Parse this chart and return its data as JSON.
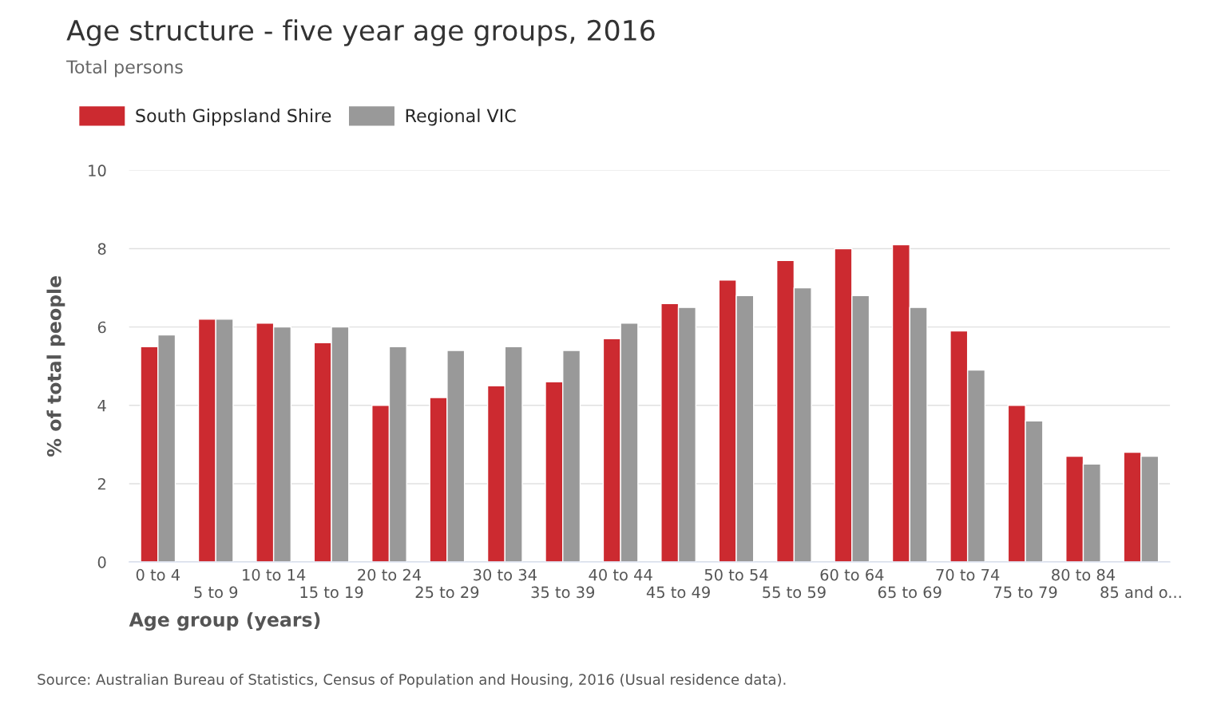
{
  "chart_data": {
    "type": "bar",
    "title": "Age structure - five year age groups, 2016",
    "subtitle": "Total persons",
    "xlabel": "Age group (years)",
    "ylabel": "% of total people",
    "categories": [
      "0 to 4",
      "5 to 9",
      "10 to 14",
      "15 to 19",
      "20 to 24",
      "25 to 29",
      "30 to 34",
      "35 to 39",
      "40 to 44",
      "45 to 49",
      "50 to 54",
      "55 to 59",
      "60 to 64",
      "65 to 69",
      "70 to 74",
      "75 to 79",
      "80 to 84",
      "85 and o..."
    ],
    "series": [
      {
        "name": "South Gippsland Shire",
        "color": "#cc2a30",
        "values": [
          5.5,
          6.2,
          6.1,
          5.6,
          4.0,
          4.2,
          4.5,
          4.6,
          5.7,
          6.6,
          7.2,
          7.7,
          8.0,
          8.1,
          5.9,
          4.0,
          2.7,
          2.8
        ]
      },
      {
        "name": "Regional VIC",
        "color": "#999999",
        "values": [
          5.8,
          6.2,
          6.0,
          6.0,
          5.5,
          5.4,
          5.5,
          5.4,
          6.1,
          6.5,
          6.8,
          7.0,
          6.8,
          6.5,
          4.9,
          3.6,
          2.5,
          2.7
        ]
      }
    ],
    "ylim": [
      0,
      10
    ],
    "yticks": [
      0,
      2,
      4,
      6,
      8,
      10
    ],
    "grid": "y",
    "legend": "top left",
    "annotations": [
      "Source: Australian Bureau of Statistics, Census of Population and Housing, 2016 (Usual residence data)."
    ]
  }
}
